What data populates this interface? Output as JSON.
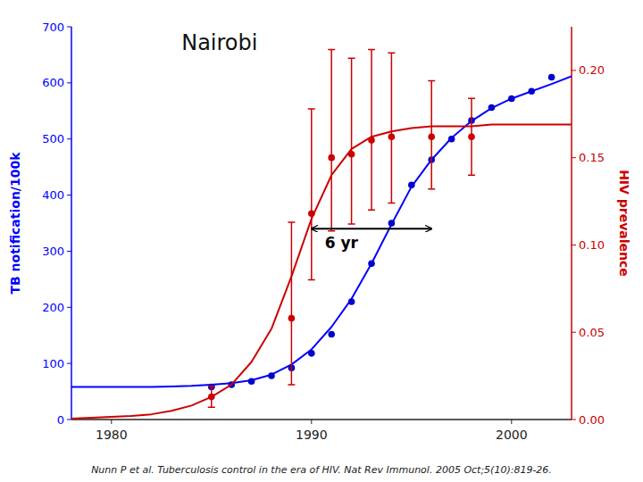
{
  "chart_data": {
    "type": "line",
    "title": "Nairobi",
    "ylabel": "TB notification/100k",
    "y2label": "HIV prevalence",
    "caption": "Nunn P et al. Tuberculosis control in the era of HIV. Nat Rev Immunol. 2005 Oct;5(10):819-26.",
    "xlim": [
      1978,
      2003
    ],
    "xticks": [
      1980,
      1990,
      2000
    ],
    "ylim": [
      0,
      700
    ],
    "yticks": [
      0,
      100,
      200,
      300,
      400,
      500,
      600,
      700
    ],
    "y2lim": [
      0,
      0.225
    ],
    "y2ticks": [
      {
        "value": 0,
        "label": "0.00"
      },
      0.05,
      {
        "value": 0.1,
        "label": "0.10"
      },
      0.15,
      {
        "value": 0.2,
        "label": "0.20"
      }
    ],
    "grid": false,
    "series": [
      {
        "type": "line",
        "color": "#0000FF",
        "x": [
          1978,
          1979,
          1980,
          1981,
          1982,
          1983,
          1984,
          1985,
          1986,
          1987,
          1988,
          1989,
          1990,
          1991,
          1992,
          1993,
          1994,
          1995,
          1996,
          1997,
          1998,
          1999,
          2000,
          2001,
          2002,
          2003
        ],
        "values": [
          58,
          58,
          58,
          58,
          58,
          59,
          60,
          62,
          65,
          70,
          80,
          98,
          125,
          165,
          215,
          278,
          348,
          415,
          463,
          502,
          532,
          555,
          572,
          585,
          598,
          612
        ]
      },
      {
        "type": "scatter",
        "marker": "circle",
        "color": "#0000CC",
        "x": [
          1985,
          1986,
          1987,
          1988,
          1989,
          1990,
          1991,
          1992,
          1993,
          1994,
          1995,
          1996,
          1997,
          1998,
          1999,
          2000,
          2001,
          2002
        ],
        "values": [
          58,
          62,
          68,
          78,
          92,
          118,
          152,
          210,
          278,
          350,
          418,
          463,
          500,
          533,
          556,
          572,
          585,
          610
        ]
      },
      {
        "type": "line",
        "axis": "y2",
        "color": "#CC0000",
        "x": [
          1978,
          1979,
          1980,
          1981,
          1982,
          1983,
          1984,
          1985,
          1986,
          1987,
          1988,
          1989,
          1990,
          1991,
          1992,
          1993,
          1994,
          1995,
          1996,
          1997,
          1998,
          1999,
          2000,
          2001,
          2002,
          2003
        ],
        "values": [
          0.0005,
          0.001,
          0.0015,
          0.002,
          0.003,
          0.005,
          0.008,
          0.013,
          0.02,
          0.033,
          0.052,
          0.082,
          0.115,
          0.14,
          0.155,
          0.162,
          0.165,
          0.167,
          0.168,
          0.168,
          0.168,
          0.169,
          0.169,
          0.169,
          0.169,
          0.169
        ]
      },
      {
        "type": "scatter",
        "marker": "circle",
        "axis": "y2",
        "color": "#CC0000",
        "x": [
          1985,
          1989,
          1990,
          1991,
          1992,
          1993,
          1994,
          1996,
          1998
        ],
        "values": [
          0.013,
          0.058,
          0.118,
          0.15,
          0.152,
          0.16,
          0.162,
          0.162,
          0.162
        ],
        "error_low": [
          0.006,
          0.038,
          0.038,
          0.042,
          0.04,
          0.04,
          0.038,
          0.03,
          0.022
        ],
        "error_high": [
          0.006,
          0.055,
          0.06,
          0.062,
          0.055,
          0.052,
          0.048,
          0.032,
          0.022
        ]
      }
    ],
    "annotations": [
      {
        "type": "arrow",
        "text": "6 yr",
        "x_start": 1990,
        "x_end": 1996,
        "y": 340
      }
    ]
  }
}
